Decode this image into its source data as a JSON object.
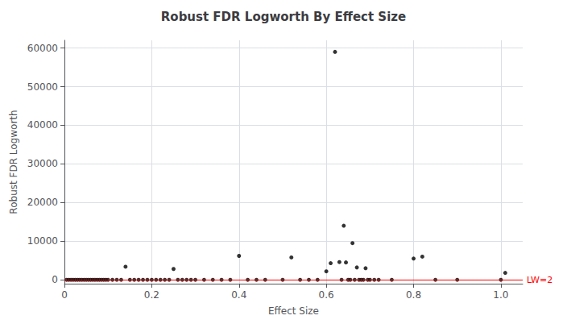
{
  "chart_data": {
    "type": "scatter",
    "title": "Robust FDR Logworth By Effect Size",
    "xlabel": "Effect Size",
    "ylabel": "Robust FDR Logworth",
    "xlim": [
      0,
      1.05
    ],
    "ylim": [
      -1000,
      62000
    ],
    "xticks": [
      0,
      0.2,
      0.4,
      0.6,
      0.8,
      {
        "value": 1,
        "label": "1.0"
      }
    ],
    "yticks": [
      0,
      10000,
      20000,
      30000,
      40000,
      50000,
      60000
    ],
    "grid": true,
    "color": "#000000",
    "marker": "circle",
    "x": [
      0.005,
      0.01,
      0.015,
      0.02,
      0.025,
      0.03,
      0.035,
      0.04,
      0.045,
      0.05,
      0.055,
      0.06,
      0.065,
      0.07,
      0.075,
      0.08,
      0.085,
      0.09,
      0.095,
      0.1,
      0.11,
      0.12,
      0.13,
      0.14,
      0.15,
      0.16,
      0.17,
      0.18,
      0.19,
      0.2,
      0.21,
      0.22,
      0.23,
      0.24,
      0.25,
      0.26,
      0.27,
      0.28,
      0.29,
      0.3,
      0.32,
      0.34,
      0.36,
      0.38,
      0.4,
      0.42,
      0.44,
      0.46,
      0.5,
      0.52,
      0.54,
      0.56,
      0.58,
      0.6,
      0.61,
      0.62,
      0.63,
      0.635,
      0.64,
      0.645,
      0.65,
      0.655,
      0.66,
      0.665,
      0.67,
      0.675,
      0.68,
      0.685,
      0.69,
      0.695,
      0.7,
      0.71,
      0.72,
      0.75,
      0.8,
      0.82,
      0.85,
      0.9,
      1.0,
      1.01
    ],
    "values": [
      2.0,
      2.1,
      2.0,
      2.2,
      2.0,
      2.1,
      2.0,
      2.0,
      2.0,
      2.1,
      2.0,
      2.0,
      2.0,
      2.1,
      2.0,
      2.2,
      2.0,
      2.0,
      2.1,
      2.0,
      2.0,
      2.1,
      2.0,
      3400,
      2.0,
      2.0,
      2.1,
      2.0,
      2.1,
      2.0,
      2.1,
      2.0,
      2.0,
      2.1,
      2800,
      2.0,
      2.1,
      2.0,
      2.0,
      2.1,
      2.0,
      2.0,
      2.1,
      2.0,
      6200,
      2.0,
      2.0,
      2.1,
      2.0,
      5800,
      2.0,
      2.0,
      2.1,
      2200,
      4300,
      59000,
      4600,
      2.5,
      14000,
      4500,
      2.0,
      2.5,
      9500,
      2.2,
      3200,
      2.0,
      2.3,
      2.0,
      3000,
      2.1,
      2.0,
      2.0,
      2.5,
      2.0,
      5500,
      6000,
      2.0,
      2.1,
      2.2,
      1800
    ],
    "annotations": [
      {
        "type": "hline",
        "y": 2,
        "text": "LW=2",
        "color": "#ff0000"
      }
    ]
  }
}
